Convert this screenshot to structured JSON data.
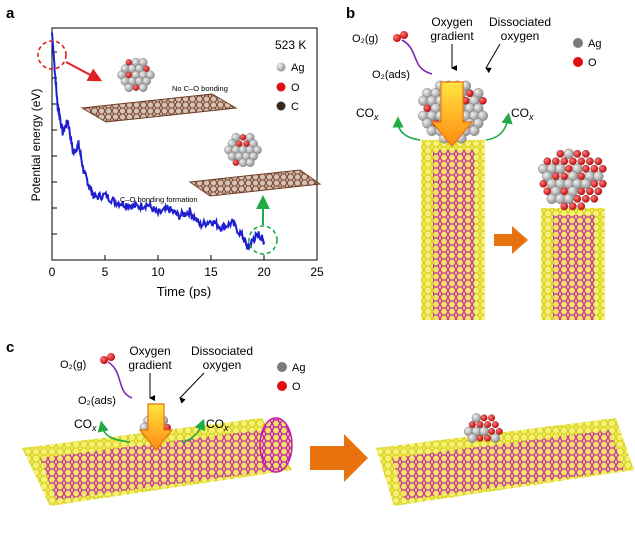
{
  "panel_a": {
    "label": "a",
    "temperature": "523 K",
    "legend": [
      {
        "name": "Ag",
        "color": "#b8b8b8"
      },
      {
        "name": "O",
        "color": "#e01010"
      },
      {
        "name": "C",
        "color": "#3a2a1e"
      }
    ],
    "annotation_top": "No C–O bonding",
    "annotation_mid": "C–O bonding formation",
    "chart_data": {
      "type": "line",
      "xlabel": "Time (ps)",
      "ylabel": "Potential energy (eV)",
      "xlim": [
        0,
        25
      ],
      "x_ticks": [
        "0",
        "5",
        "10",
        "15",
        "20",
        "25"
      ],
      "y_tick_labels": "none",
      "series": [
        {
          "color": "#1f1fd0",
          "x": [
            0,
            0.2,
            0.5,
            1,
            1.5,
            2,
            2.5,
            3,
            3.5,
            4,
            5,
            6,
            7,
            8,
            9,
            10,
            11,
            12,
            13,
            14,
            15,
            16,
            17,
            18,
            18.5,
            19,
            19.5,
            20
          ],
          "y": [
            0.98,
            0.86,
            0.68,
            0.55,
            0.6,
            0.46,
            0.5,
            0.38,
            0.32,
            0.27,
            0.28,
            0.25,
            0.24,
            0.23,
            0.24,
            0.2,
            0.22,
            0.19,
            0.21,
            0.15,
            0.17,
            0.14,
            0.16,
            0.1,
            0.05,
            0.09,
            0.11,
            0.08
          ]
        }
      ]
    }
  },
  "panel_b": {
    "label": "b",
    "o2g": "O₂(g)",
    "o2ads": "O₂(ads)",
    "oxygen_gradient": [
      "Oxygen",
      "gradient"
    ],
    "dissociated_oxygen": [
      "Dissociated",
      "oxygen"
    ],
    "cox_left": "CO",
    "cox_right": "CO",
    "cox_sub": "x",
    "legend": [
      {
        "name": "Ag",
        "color": "#7a7a7a"
      },
      {
        "name": "O",
        "color": "#e01010"
      }
    ]
  },
  "panel_c": {
    "label": "c",
    "o2g": "O₂(g)",
    "o2ads": "O₂(ads)",
    "oxygen_gradient": [
      "Oxygen",
      "gradient"
    ],
    "dissociated_oxygen": [
      "Dissociated",
      "oxygen"
    ],
    "cox_left": "CO",
    "cox_right": "CO",
    "cox_sub": "x",
    "legend": [
      {
        "name": "Ag",
        "color": "#7a7a7a"
      },
      {
        "name": "O",
        "color": "#e01010"
      }
    ]
  },
  "colors": {
    "tube_yellow": "#e6e21e",
    "tube_magenta": "#c018b8",
    "arrow_orange": "#e8720e",
    "green": "#22aa44",
    "purple": "#7a2ab0",
    "line_blue": "#1f1fd0",
    "red_dash": "#e02020",
    "green_dash": "#22aa44",
    "graphene": "#6b3a22"
  }
}
